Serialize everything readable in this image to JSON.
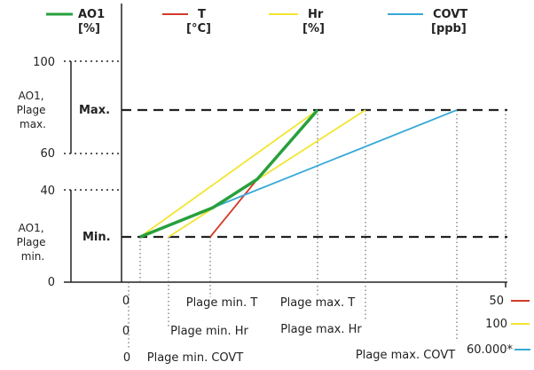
{
  "legend": [
    {
      "label": "AO1",
      "unit": "[%]",
      "color": "#27a03c"
    },
    {
      "label": "T",
      "unit": "[°C]",
      "color": "#d23b2a"
    },
    {
      "label": "Hr",
      "unit": "[%]",
      "color": "#f2e532"
    },
    {
      "label": "COVT",
      "unit": "[ppb]",
      "color": "#37a9d6"
    }
  ],
  "y_ticks": {
    "t100": "100",
    "t60": "60",
    "t40": "40",
    "t0": "0"
  },
  "max_label": "Max.",
  "min_label": "Min.",
  "ao1_plage_max": [
    "AO1,",
    "Plage",
    "max."
  ],
  "ao1_plage_min": [
    "AO1,",
    "Plage",
    "min."
  ],
  "x_rows": [
    {
      "zero": "0",
      "min": "Plage min. T",
      "max": "Plage max. T",
      "end_value": "50",
      "end_color": "#d23b2a"
    },
    {
      "zero": "0",
      "min": "Plage min. Hr",
      "max": "Plage max. Hr",
      "end_value": "100",
      "end_color": "#f2e532"
    },
    {
      "zero": "0",
      "min": "Plage min. COVT",
      "max": "Plage max. COVT",
      "end_value": "60.000*",
      "end_color": "#37a9d6"
    }
  ]
}
